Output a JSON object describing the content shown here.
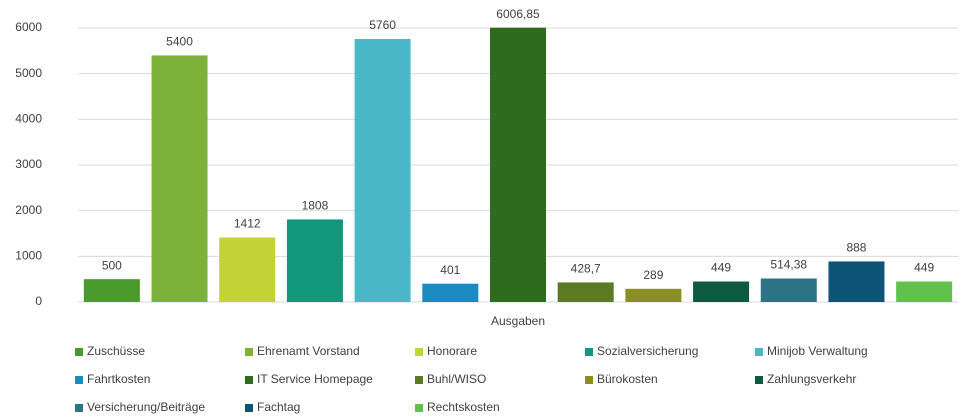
{
  "chart_data": {
    "type": "bar",
    "categories": [
      "Ausgaben"
    ],
    "ylim": [
      0,
      6000
    ],
    "yticks": [
      0,
      1000,
      2000,
      3000,
      4000,
      5000,
      6000
    ],
    "grid": true,
    "legend": "bottom",
    "series": [
      {
        "name": "Zuschüsse",
        "color": "#4a9a2e",
        "values": [
          500
        ]
      },
      {
        "name": "Ehrenamt Vorstand",
        "color": "#7db23a",
        "values": [
          5400
        ]
      },
      {
        "name": "Honorare",
        "color": "#c3d234",
        "values": [
          1412
        ]
      },
      {
        "name": "Sozialversicherung",
        "color": "#13977a",
        "values": [
          1808
        ]
      },
      {
        "name": "Minijob Verwaltung",
        "color": "#4ab8c9",
        "values": [
          5760
        ]
      },
      {
        "name": "Fahrtkosten",
        "color": "#1a8cc2",
        "values": [
          401
        ]
      },
      {
        "name": "IT Service Homepage",
        "color": "#2e6b1e",
        "values": [
          6006.85
        ],
        "value_labels": [
          "6006,85"
        ]
      },
      {
        "name": "Buhl/WISO",
        "color": "#5c7a23",
        "values": [
          428.7
        ],
        "value_labels": [
          "428,7"
        ]
      },
      {
        "name": "Bürokosten",
        "color": "#8a8f25",
        "values": [
          289
        ]
      },
      {
        "name": "Zahlungsverkehr",
        "color": "#0e5a40",
        "values": [
          449
        ]
      },
      {
        "name": "Versicherung/Beiträge",
        "color": "#2d7385",
        "values": [
          514.38
        ],
        "value_labels": [
          "514,38"
        ]
      },
      {
        "name": "Fachtag",
        "color": "#0d5577",
        "values": [
          888
        ]
      },
      {
        "name": "Rechtskosten",
        "color": "#62c04d",
        "values": [
          449
        ]
      }
    ]
  }
}
